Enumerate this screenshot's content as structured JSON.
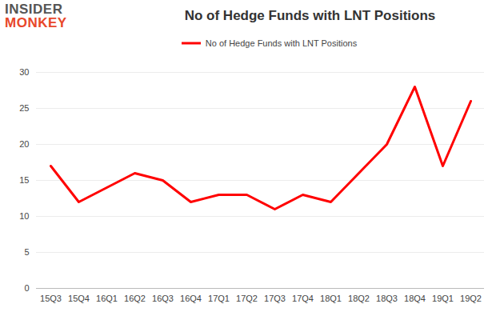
{
  "chart_data": {
    "type": "line",
    "title": "No of Hedge Funds with LNT Positions",
    "logo": [
      "INSIDER",
      "MONKEY"
    ],
    "categories": [
      "15Q3",
      "15Q4",
      "16Q1",
      "16Q2",
      "16Q3",
      "16Q4",
      "17Q1",
      "17Q2",
      "17Q3",
      "17Q4",
      "18Q1",
      "18Q2",
      "18Q3",
      "18Q4",
      "19Q1",
      "19Q2"
    ],
    "series": [
      {
        "name": "No of Hedge Funds with LNT Positions",
        "color": "#ff0000",
        "values": [
          17,
          12,
          14,
          16,
          15,
          12,
          13,
          13,
          11,
          13,
          12,
          16,
          20,
          28,
          17,
          26
        ]
      }
    ],
    "ylim": [
      0,
      30
    ],
    "yticks": [
      0,
      5,
      10,
      15,
      20,
      25,
      30
    ],
    "grid": true,
    "legend": "top"
  }
}
